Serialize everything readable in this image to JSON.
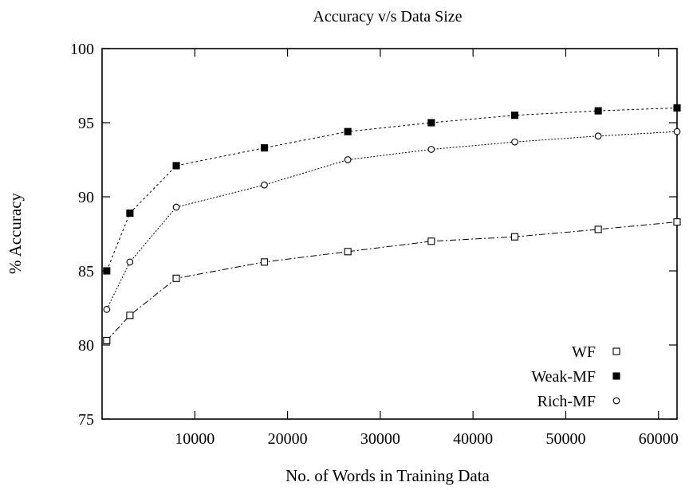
{
  "chart_data": {
    "type": "line",
    "title": "Accuracy v/s Data Size",
    "xlabel": "No. of Words in Training Data",
    "ylabel": "% Accuracy",
    "xlim": [
      0,
      62000
    ],
    "ylim": [
      75,
      100
    ],
    "xticks": [
      10000,
      20000,
      30000,
      40000,
      50000,
      60000
    ],
    "yticks": [
      75,
      80,
      85,
      90,
      95,
      100
    ],
    "grid": false,
    "legend_position": "bottom-right",
    "x": [
      500,
      3000,
      8000,
      17500,
      26500,
      35500,
      44500,
      53500,
      62000
    ],
    "series": [
      {
        "name": "WF",
        "marker": "open-square",
        "dash": "8 3 2 3",
        "values": [
          80.3,
          82.0,
          84.5,
          85.6,
          86.3,
          87.0,
          87.3,
          87.8,
          88.3
        ]
      },
      {
        "name": "Weak-MF",
        "marker": "filled-square",
        "dash": "3 3",
        "values": [
          85.0,
          88.9,
          92.1,
          93.3,
          94.4,
          95.0,
          95.5,
          95.8,
          96.0
        ]
      },
      {
        "name": "Rich-MF",
        "marker": "open-circle",
        "dash": "2 2",
        "values": [
          82.4,
          85.6,
          89.3,
          90.8,
          92.5,
          93.2,
          93.7,
          94.1,
          94.4
        ]
      }
    ]
  }
}
